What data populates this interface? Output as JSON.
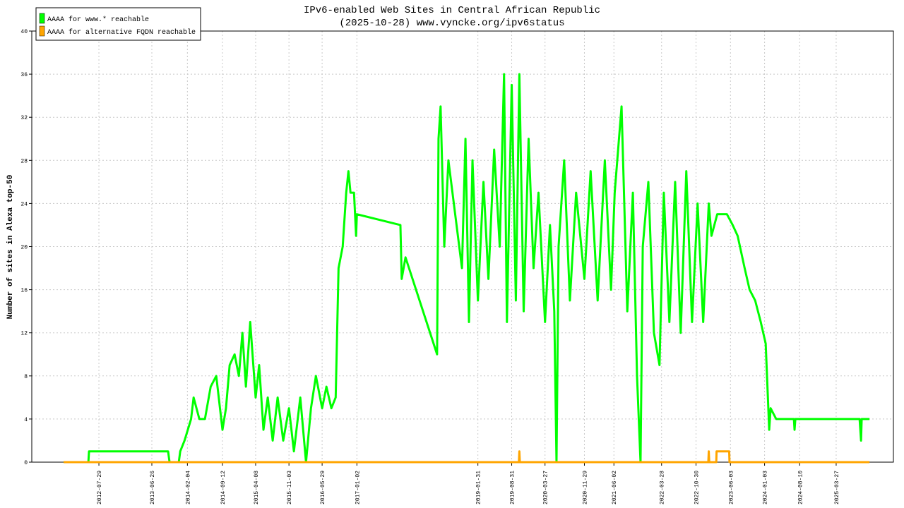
{
  "chart_data": {
    "type": "line",
    "title": "IPv6-enabled Web Sites in Central African Republic",
    "subtitle": "(2025-10-28) www.vyncke.org/ipv6status",
    "y_label": "Number of sites in Alexa top-50",
    "xlim": [
      "2011-06-04",
      "2026-03-21"
    ],
    "xticks": [
      "2012-07-29",
      "2013-06-26",
      "2014-02-04",
      "2014-09-12",
      "2015-04-08",
      "2015-11-03",
      "2016-05-29",
      "2017-01-02",
      "2019-01-31",
      "2019-08-31",
      "2020-03-27",
      "2020-11-29",
      "2021-06-02",
      "2022-03-28",
      "2022-10-30",
      "2023-06-03",
      "2024-01-03",
      "2024-08-10",
      "2025-03-27"
    ],
    "ylim": [
      0,
      40
    ],
    "yticks": [
      0,
      4,
      8,
      12,
      16,
      20,
      24,
      28,
      32,
      36,
      40
    ],
    "grid": true,
    "legend": "top-left",
    "series": [
      {
        "name": "AAAA for www.* reachable",
        "color": "#00ff00",
        "x": [
          "2011-12-21",
          "2012-05-24",
          "2012-05-28",
          "2013-10-06",
          "2013-10-15",
          "2013-12-12",
          "2013-12-21",
          "2014-01-17",
          "2014-02-27",
          "2014-03-15",
          "2014-04-20",
          "2014-05-25",
          "2014-06-30",
          "2014-08-04",
          "2014-09-12",
          "2014-10-04",
          "2014-10-27",
          "2014-11-27",
          "2014-12-24",
          "2015-01-15",
          "2015-02-06",
          "2015-03-05",
          "2015-04-08",
          "2015-04-30",
          "2015-05-27",
          "2015-06-23",
          "2015-07-24",
          "2015-08-24",
          "2015-09-28",
          "2015-11-03",
          "2015-12-04",
          "2016-01-13",
          "2016-02-18",
          "2016-03-20",
          "2016-04-20",
          "2016-05-29",
          "2016-06-25",
          "2016-07-26",
          "2016-08-22",
          "2016-09-09",
          "2016-10-05",
          "2016-10-27",
          "2016-11-10",
          "2016-11-23",
          "2016-12-15",
          "2016-12-28",
          "2017-01-02",
          "2017-10-02",
          "2017-10-10",
          "2017-11-03",
          "2017-11-25",
          "2018-05-20",
          "2018-05-29",
          "2018-06-11",
          "2018-07-04",
          "2018-07-30",
          "2018-10-23",
          "2018-11-14",
          "2018-12-06",
          "2018-12-28",
          "2019-01-31",
          "2019-03-07",
          "2019-04-07",
          "2019-05-13",
          "2019-06-17",
          "2019-07-14",
          "2019-08-01",
          "2019-08-31",
          "2019-09-26",
          "2019-10-18",
          "2019-11-14",
          "2019-12-15",
          "2020-01-15",
          "2020-02-15",
          "2020-03-27",
          "2020-04-27",
          "2020-05-24",
          "2020-06-07",
          "2020-06-20",
          "2020-07-25",
          "2020-08-30",
          "2020-10-08",
          "2020-11-29",
          "2021-01-07",
          "2021-02-20",
          "2021-04-06",
          "2021-05-15",
          "2021-06-07",
          "2021-07-20",
          "2021-08-25",
          "2021-09-29",
          "2021-10-25",
          "2021-11-16",
          "2021-11-30",
          "2022-01-04",
          "2022-02-08",
          "2022-03-15",
          "2022-04-11",
          "2022-05-16",
          "2022-06-21",
          "2022-07-26",
          "2022-08-30",
          "2022-10-05",
          "2022-11-09",
          "2022-12-14",
          "2023-01-18",
          "2023-02-04",
          "2023-03-12",
          "2023-05-12",
          "2023-06-17",
          "2023-07-18",
          "2023-08-31",
          "2023-10-01",
          "2023-11-05",
          "2023-12-10",
          "2024-01-10",
          "2024-02-01",
          "2024-02-10",
          "2024-03-16",
          "2024-07-05",
          "2024-07-09",
          "2024-07-14",
          "2025-08-21",
          "2025-08-30",
          "2025-09-03",
          "2025-10-22"
        ],
        "values": [
          0,
          0,
          1,
          1,
          0,
          0,
          1,
          2,
          4,
          6,
          4,
          4,
          7,
          8,
          3,
          5,
          9,
          10,
          8,
          12,
          7,
          13,
          6,
          9,
          3,
          6,
          2,
          6,
          2,
          5,
          1,
          6,
          0,
          5,
          8,
          5,
          7,
          5,
          6,
          18,
          20,
          25,
          27,
          25,
          25,
          21,
          23,
          22,
          17,
          19,
          18,
          10,
          30,
          33,
          20,
          28,
          18,
          30,
          13,
          28,
          15,
          26,
          17,
          29,
          20,
          36,
          13,
          35,
          15,
          36,
          14,
          30,
          18,
          25,
          13,
          22,
          14,
          0,
          20,
          28,
          15,
          25,
          17,
          27,
          15,
          28,
          16,
          25,
          33,
          14,
          25,
          8,
          0,
          20,
          26,
          12,
          9,
          25,
          13,
          26,
          12,
          27,
          13,
          24,
          13,
          24,
          21,
          23,
          23,
          22,
          21,
          18,
          16,
          15,
          13,
          11,
          3,
          5,
          4,
          4,
          3,
          4,
          4,
          2,
          4,
          4
        ]
      },
      {
        "name": "AAAA for alternative FQDN reachable",
        "color": "#ffa500",
        "x": [
          "2011-12-21",
          "2019-10-15",
          "2019-10-18",
          "2019-10-21",
          "2023-01-15",
          "2023-01-18",
          "2023-01-21",
          "2023-03-06",
          "2023-03-08",
          "2023-05-26",
          "2023-05-28",
          "2025-10-22"
        ],
        "values": [
          0,
          0,
          1,
          0,
          0,
          1,
          0,
          0,
          1,
          1,
          0,
          0
        ]
      }
    ]
  }
}
